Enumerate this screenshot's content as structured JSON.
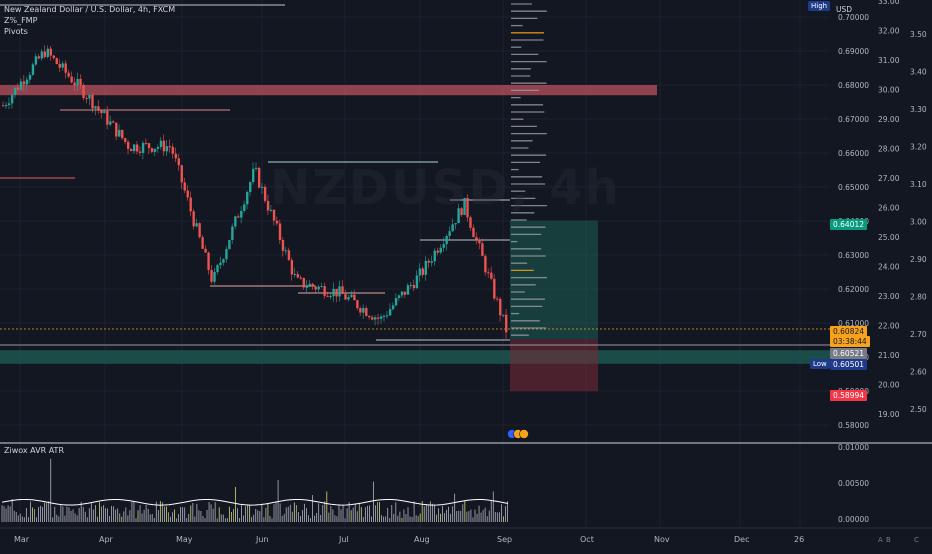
{
  "legend": {
    "symbol": "New Zealand Dollar / U.S. Dollar, 4h, FXCM",
    "indicator_1": "Z%_FMP",
    "indicator_2": "Pivots"
  },
  "watermark": "NZDUSD, 4h",
  "currency_label": "USD",
  "right_axis": {
    "price_ticks": [
      "0.70000",
      "0.69000",
      "0.68000",
      "0.67000",
      "0.66000",
      "0.65000",
      "0.64000",
      "0.63000",
      "0.62000",
      "0.61000",
      "0.60000",
      "0.59000",
      "0.58000"
    ],
    "pct_ticks": [
      "33.00",
      "32.00",
      "31.00",
      "30.00",
      "29.00",
      "28.00",
      "27.00",
      "26.00",
      "25.00",
      "24.00",
      "23.00",
      "22.00",
      "21.00",
      "20.00",
      "19.00"
    ],
    "ratio_ticks": [
      "3.50",
      "3.40",
      "3.30",
      "3.20",
      "3.10",
      "3.00",
      "2.90",
      "2.80",
      "2.70",
      "2.60",
      "2.50"
    ]
  },
  "price_tags": {
    "target": "0.64012",
    "current": "0.60824",
    "countdown": "03:38:44",
    "last": "0.60521",
    "low_value": "0.60501",
    "stop": "0.58994"
  },
  "labels": {
    "high": "High",
    "low": "Low"
  },
  "indicator": {
    "title": "Ziwox AVR ATR",
    "ticks": [
      "0.01000",
      "0.00500",
      "0.00000"
    ]
  },
  "time_axis": [
    "Mar",
    "Apr",
    "May",
    "Jun",
    "Jul",
    "Aug",
    "Sep",
    "Oct",
    "Nov",
    "Dec",
    "26"
  ],
  "corner_buttons": [
    "A",
    "B",
    "C"
  ],
  "colors": {
    "background": "#131722",
    "up": "#26a69a",
    "down": "#ef5350",
    "tag_green": "#089981",
    "tag_red": "#f23645",
    "tag_orange": "#f7a21b",
    "demand_zone": "#1d5a52",
    "supply_zone": "#a84a56"
  },
  "chart_data": {
    "type": "candlestick",
    "symbol": "NZDUSD",
    "timeframe": "4h",
    "x": [
      "Mar",
      "Apr",
      "May",
      "Jun",
      "Jul",
      "Aug",
      "Sep"
    ],
    "close_path": [
      0.674,
      0.69,
      0.677,
      0.662,
      0.662,
      0.622,
      0.655,
      0.622,
      0.619,
      0.611,
      0.625,
      0.645,
      0.608
    ],
    "ylim": [
      0.575,
      0.705
    ],
    "zones": [
      {
        "type": "supply",
        "from": 0.677,
        "to": 0.68
      },
      {
        "type": "demand",
        "from": 0.598,
        "to": 0.602
      }
    ],
    "position": {
      "entry": 0.6052,
      "target": 0.64012,
      "stop": 0.58994
    }
  }
}
